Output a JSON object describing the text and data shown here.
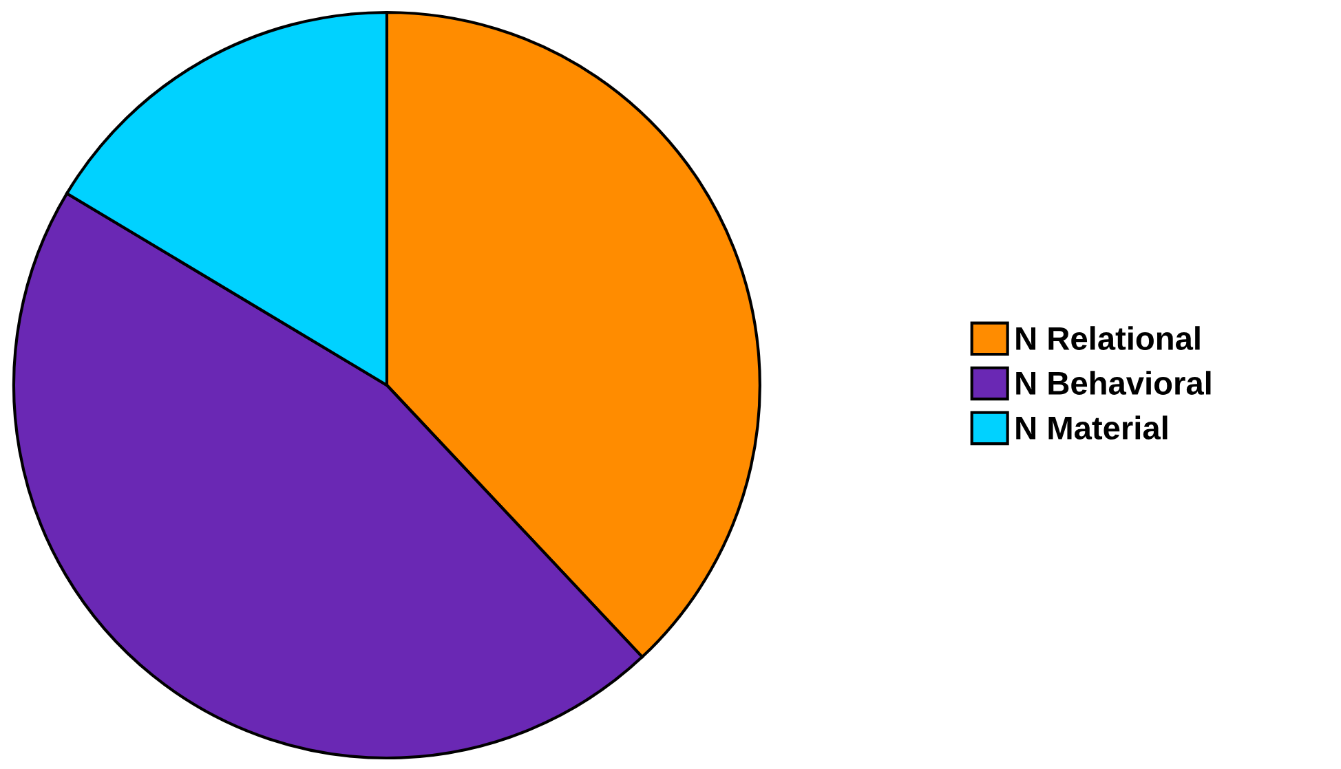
{
  "chart_data": {
    "type": "pie",
    "categories": [
      "N Relational",
      "N Behavioral",
      "N Material"
    ],
    "values": [
      38.0,
      45.6,
      16.4
    ],
    "colors": [
      "#ff8c00",
      "#6a28b4",
      "#00d2ff"
    ],
    "legend": "right"
  }
}
